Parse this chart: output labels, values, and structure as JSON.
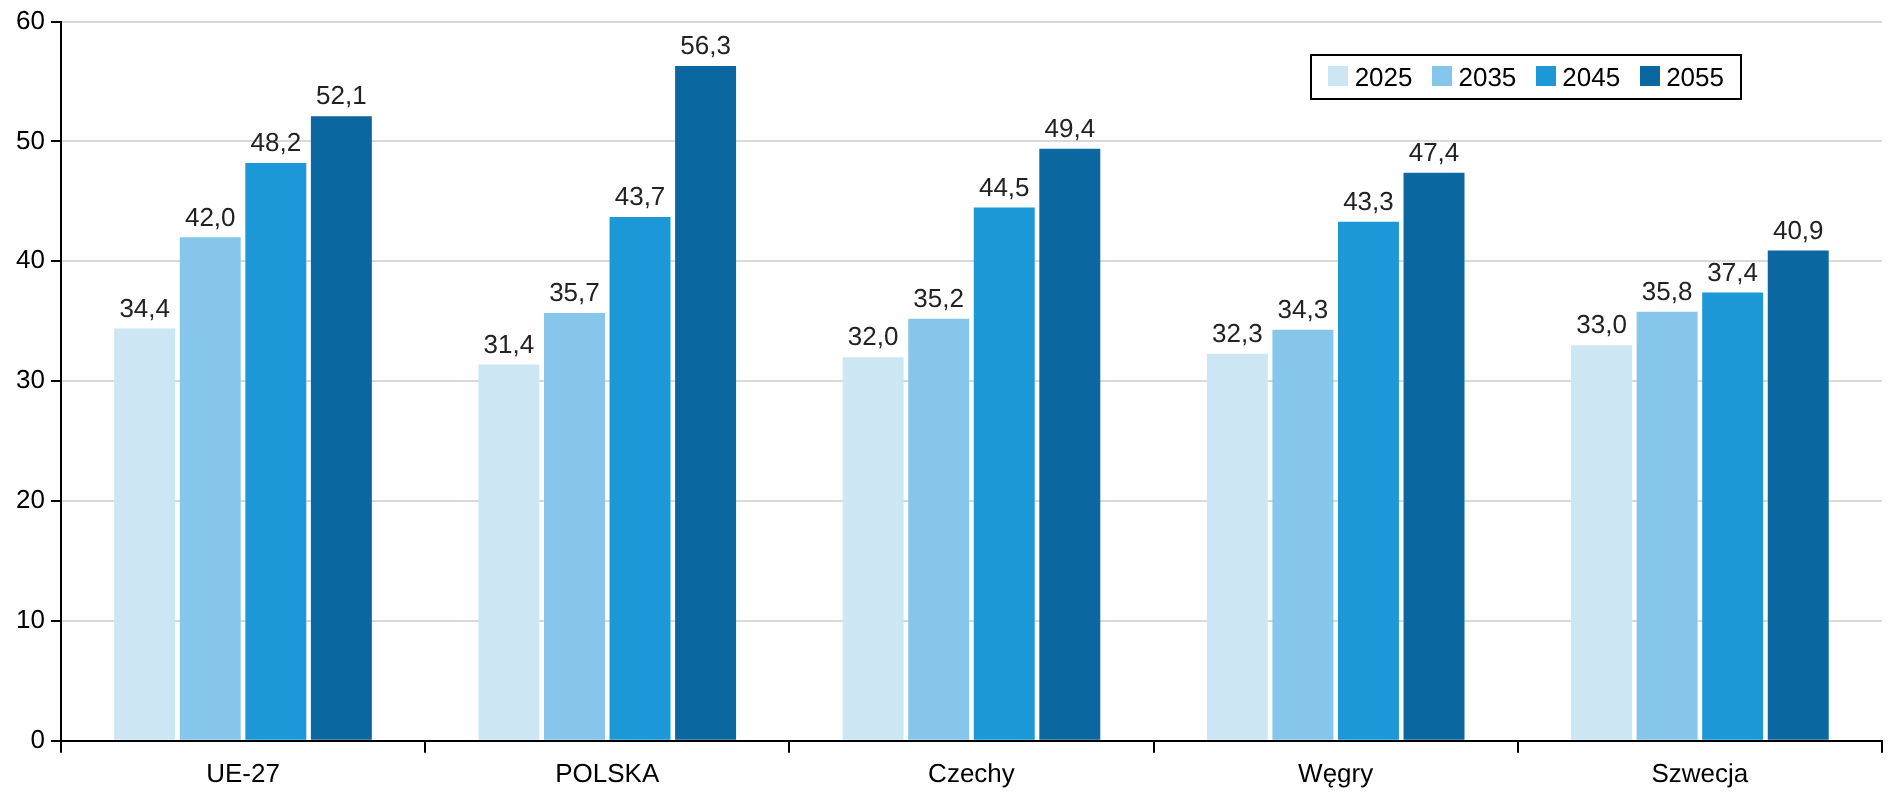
{
  "chart_data": {
    "type": "bar",
    "categories": [
      "UE-27",
      "POLSKA",
      "Czechy",
      "Węgry",
      "Szwecja"
    ],
    "series": [
      {
        "name": "2025",
        "color": "#cde6f4",
        "values": [
          34.4,
          31.4,
          32.0,
          32.3,
          33.0
        ],
        "value_labels": [
          "34,4",
          "31,4",
          "32,0",
          "32,3",
          "33,0"
        ]
      },
      {
        "name": "2035",
        "color": "#85c6ea",
        "values": [
          42.0,
          35.7,
          35.2,
          34.3,
          35.8
        ],
        "value_labels": [
          "42,0",
          "35,7",
          "35,2",
          "34,3",
          "35,8"
        ]
      },
      {
        "name": "2045",
        "color": "#1b98d5",
        "values": [
          48.2,
          43.7,
          44.5,
          43.3,
          37.4
        ],
        "value_labels": [
          "48,2",
          "43,7",
          "44,5",
          "43,3",
          "37,4"
        ]
      },
      {
        "name": "2055",
        "color": "#0a67a0",
        "values": [
          52.1,
          56.3,
          49.4,
          47.4,
          40.9
        ],
        "value_labels": [
          "52,1",
          "56,3",
          "49,4",
          "47,4",
          "40,9"
        ]
      }
    ],
    "ylim": [
      0,
      60
    ],
    "yticks": [
      0,
      10,
      20,
      30,
      40,
      50,
      60
    ],
    "grid": "y",
    "legend": "top right"
  }
}
